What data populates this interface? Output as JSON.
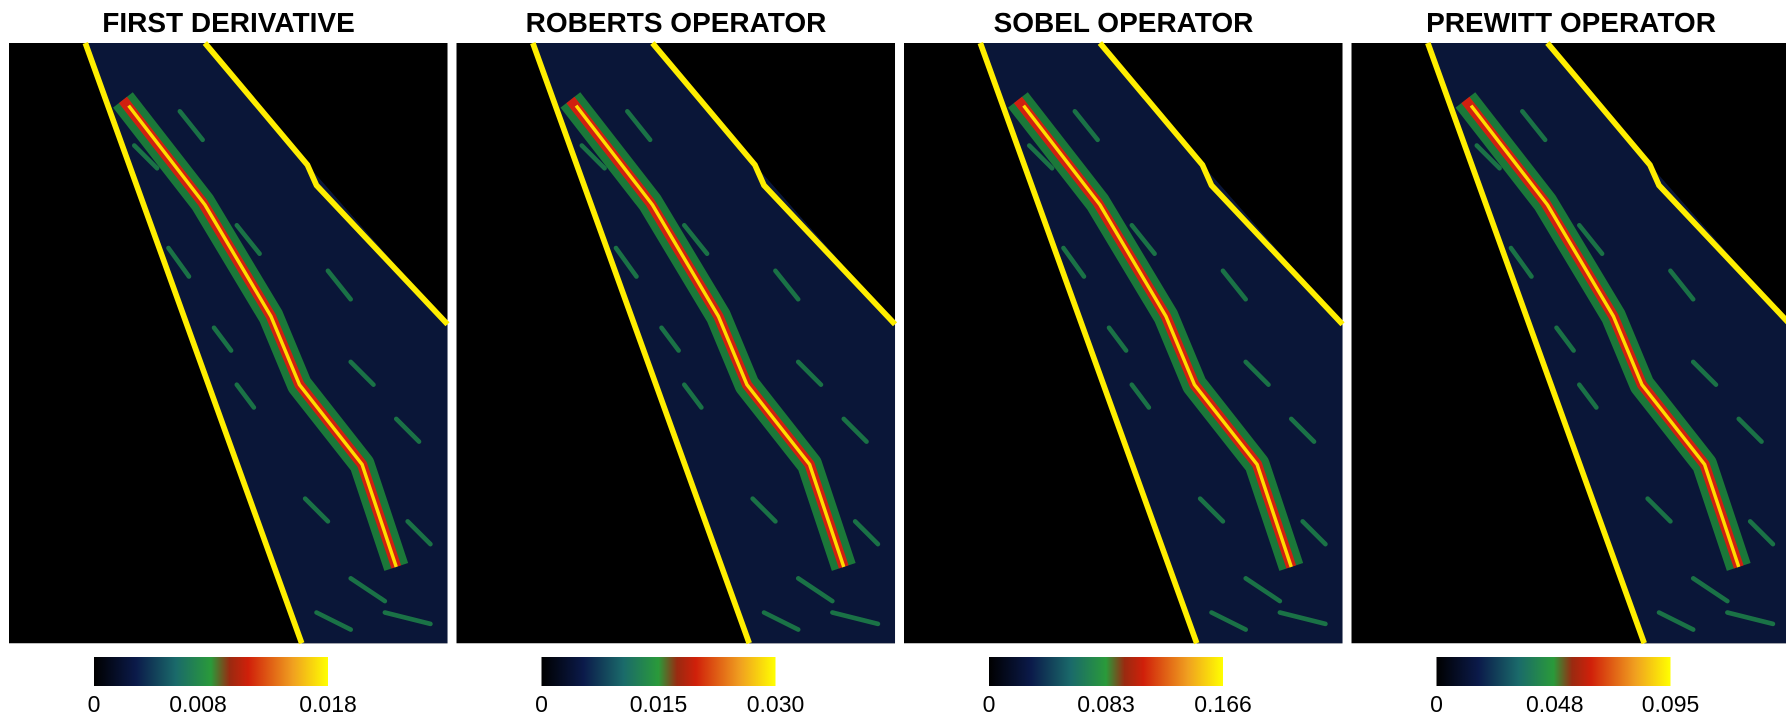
{
  "panels": [
    {
      "title": "FIRST DERIVATIVE",
      "colorbar": {
        "range": [
          0,
          0.018
        ],
        "ticks": [
          0,
          0.008,
          0.018
        ]
      }
    },
    {
      "title": "ROBERTS OPERATOR",
      "colorbar": {
        "range": [
          0,
          0.03
        ],
        "ticks": [
          0,
          0.015,
          {
            "value": 0.03,
            "label": "0.030"
          }
        ]
      }
    },
    {
      "title": "SOBEL OPERATOR",
      "colorbar": {
        "range": [
          0,
          0.166
        ],
        "ticks": [
          0,
          0.083,
          0.166
        ]
      }
    },
    {
      "title": "PREWITT OPERATOR",
      "colorbar": {
        "range": [
          0,
          0.095
        ],
        "ticks": [
          0,
          0.048,
          0.095
        ]
      }
    }
  ]
}
